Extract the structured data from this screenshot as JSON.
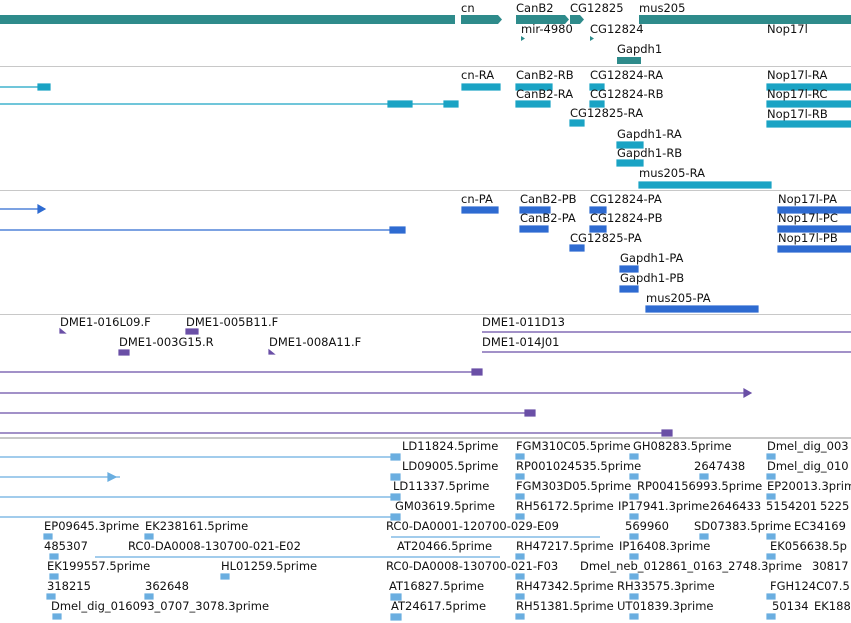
{
  "colors": {
    "gene": "#2e8b8b",
    "transcript_mrna": "#1aa3c4",
    "protein": "#2e6bd1",
    "clone": "#6a4fa6",
    "est": "#6aaee0",
    "separator": "#c8c8c8"
  },
  "tracks": [
    {
      "name": "gene-track"
    },
    {
      "name": "transcript-track"
    },
    {
      "name": "protein-track"
    },
    {
      "name": "clone-track"
    },
    {
      "name": "est-track"
    }
  ],
  "labels": {
    "genes": [
      "cn",
      "CanB2",
      "CG12825",
      "mus205",
      "mir-4980",
      "CG12824",
      "Nop17l",
      "Gapdh1"
    ],
    "transcripts": [
      "cn-RA",
      "CanB2-RB",
      "CG12824-RA",
      "Nop17l-RA",
      "CanB2-RA",
      "CG12824-RB",
      "Nop17l-RC",
      "CG12825-RA",
      "Nop17l-RB",
      "Gapdh1-RA",
      "Gapdh1-RB",
      "mus205-RA"
    ],
    "proteins": [
      "cn-PA",
      "CanB2-PB",
      "CG12824-PA",
      "Nop17l-PA",
      "CanB2-PA",
      "CG12824-PB",
      "Nop17l-PC",
      "CG12825-PA",
      "Nop17l-PB",
      "Gapdh1-PA",
      "Gapdh1-PB",
      "mus205-PA"
    ],
    "clones": [
      "DME1-016L09.F",
      "DME1-005B11.F",
      "DME1-011D13",
      "DME1-003G15.R",
      "DME1-008A11.F",
      "DME1-014J01"
    ],
    "ests": [
      "LD11824.5prime",
      "FGM310C05.5prime",
      "GH08283.5prime",
      "Dmel_dig_003",
      "LD09005.5prime",
      "RP001024535.5prime",
      "2647438",
      "Dmel_dig_010",
      "LD11337.5prime",
      "FGM303D05.5prime",
      "RP004156993.5prime",
      "EP20013.3prime",
      "GM03619.5prime",
      "RH56172.5prime",
      "IP17941.3prime",
      "2646433",
      "5154201",
      "5225",
      "EP09645.3prime",
      "EK238161.5prime",
      "RC0-DA0001-120700-029-E09",
      "569960",
      "SD07383.5prime",
      "EC34169",
      "485307",
      "RC0-DA0008-130700-021-E02",
      "AT20466.5prime",
      "RH47217.5prime",
      "IP16408.3prime",
      "EK056638.5p",
      "EK199557.5prime",
      "HL01259.5prime",
      "RC0-DA0008-130700-021-F03",
      "Dmel_neb_012861_0163_2748.3prime",
      "30817",
      "318215",
      "362648",
      "AT16827.5prime",
      "RH47342.5prime",
      "RH33575.3prime",
      "FGH124C07.5",
      "Dmel_dig_016093_0707_3078.3prime",
      "AT24617.5prime",
      "RH51381.5prime",
      "UT01839.3prime",
      "50134",
      "EK188"
    ]
  }
}
